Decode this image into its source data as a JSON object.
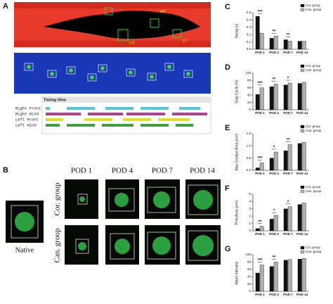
{
  "panel_a": {
    "label": "A",
    "paw_labels": [
      "RH",
      "RF",
      "LH",
      "LF"
    ],
    "timing_title": "Timing View",
    "rows": [
      "Right Front",
      "Right Hind",
      "Left Front",
      "Left Hind"
    ]
  },
  "panel_b": {
    "label": "B",
    "columns": [
      "POD 1",
      "POD 4",
      "POD 7",
      "POD 14"
    ],
    "groups": [
      "Cor. group",
      "Can. group"
    ],
    "native": "Native"
  },
  "chart_data": [
    {
      "type": "bar",
      "panel_label": "C",
      "ylabel": "Swing (s)",
      "categories": [
        "POD 1",
        "POD 4",
        "POD 7",
        "POD 14"
      ],
      "series": [
        {
          "name": "Cor. group",
          "color": "#111111",
          "values": [
            0.45,
            0.15,
            0.13,
            0.11
          ]
        },
        {
          "name": "Can. group",
          "color": "#b0b0b0",
          "values": [
            0.22,
            0.18,
            0.11,
            0.11
          ]
        }
      ],
      "significance": [
        "***",
        "**",
        "**",
        null
      ],
      "ylim": [
        0,
        0.5
      ],
      "yticks": [
        {
          "value": 0,
          "label": "0.0"
        },
        0.1,
        0.2,
        0.3,
        0.4,
        0.5
      ],
      "legend": "upper right"
    },
    {
      "type": "bar",
      "panel_label": "D",
      "ylabel": "Duty Cycle (%)",
      "categories": [
        "POD 1",
        "POD 4",
        "POD 7",
        "POD 14"
      ],
      "series": [
        {
          "name": "Cor. group",
          "color": "#111111",
          "values": [
            42,
            63,
            68,
            72
          ]
        },
        {
          "name": "Can. group",
          "color": "#b0b0b0",
          "values": [
            60,
            70,
            73,
            75
          ]
        }
      ],
      "significance": [
        "***",
        "**",
        "*",
        null
      ],
      "ylim": [
        0,
        100
      ],
      "yticks": [
        0,
        20,
        40,
        60,
        80,
        100
      ],
      "legend": "upper right"
    },
    {
      "type": "bar",
      "panel_label": "E",
      "ylabel": "Max Contact Area (cm²)",
      "categories": [
        "POD 1",
        "POD 4",
        "POD 7",
        "POD 14"
      ],
      "series": [
        {
          "name": "Cor. group",
          "color": "#111111",
          "values": [
            0.1,
            0.5,
            0.8,
            1.1
          ]
        },
        {
          "name": "Can. group",
          "color": "#b0b0b0",
          "values": [
            0.3,
            0.75,
            1.05,
            1.15
          ]
        }
      ],
      "significance": [
        "***",
        "*",
        "**",
        null
      ],
      "ylim": [
        0,
        1.5
      ],
      "yticks": [
        {
          "value": 0,
          "label": "0.0"
        },
        0.5,
        {
          "value": 1,
          "label": "1.0"
        },
        1.5
      ],
      "legend": "upper right"
    },
    {
      "type": "bar",
      "panel_label": "F",
      "ylabel": "Print Area (cm²)",
      "categories": [
        "POD 1",
        "POD 4",
        "POD 7",
        "POD 14"
      ],
      "series": [
        {
          "name": "Cor. group",
          "color": "#111111",
          "values": [
            0.3,
            1.6,
            3.0,
            3.6
          ]
        },
        {
          "name": "Can. group",
          "color": "#b0b0b0",
          "values": [
            0.6,
            2.1,
            3.3,
            3.8
          ]
        }
      ],
      "significance": [
        "**",
        "*",
        "*",
        null
      ],
      "ylim": [
        0,
        5
      ],
      "yticks": [
        0,
        1,
        2,
        3,
        4,
        5
      ],
      "legend": "upper right"
    },
    {
      "type": "bar",
      "panel_label": "G",
      "ylabel": "Mean Intensity",
      "categories": [
        "POD 1",
        "POD 4",
        "POD 7",
        "POD 14"
      ],
      "series": [
        {
          "name": "Cor. group",
          "color": "#111111",
          "values": [
            50,
            68,
            85,
            88
          ]
        },
        {
          "name": "Can. group",
          "color": "#b0b0b0",
          "values": [
            72,
            80,
            87,
            90
          ]
        }
      ],
      "significance": [
        "***",
        "**",
        null,
        null
      ],
      "ylim": [
        0,
        100
      ],
      "yticks": [
        0,
        20,
        40,
        60,
        80,
        100
      ],
      "legend": "upper right"
    }
  ]
}
